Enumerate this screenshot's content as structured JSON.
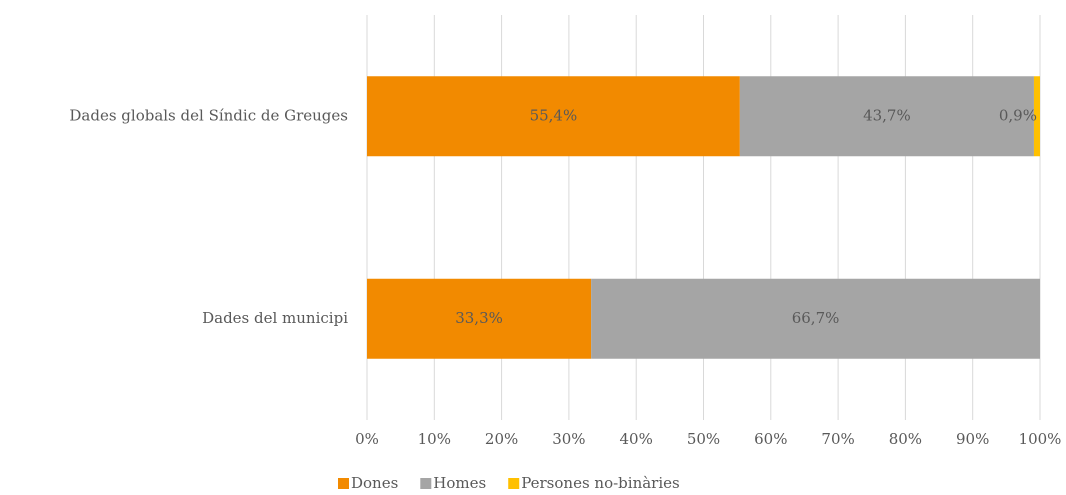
{
  "chart_data": {
    "type": "stacked-bar-horizontal",
    "categories": [
      "Dades globals del Síndic de Greuges",
      "Dades del municipi"
    ],
    "series": [
      {
        "name": "Dones",
        "color": "#f28a00",
        "values": [
          55.4,
          33.3
        ],
        "value_labels": [
          "55,4%",
          "33,3%"
        ]
      },
      {
        "name": "Homes",
        "color": "#a5a5a5",
        "values": [
          43.7,
          66.7
        ],
        "value_labels": [
          "43,7%",
          "66,7%"
        ]
      },
      {
        "name": "Persones no-binàries",
        "color": "#ffc000",
        "values": [
          0.9,
          null
        ],
        "value_labels": [
          "0,9%",
          null
        ]
      }
    ],
    "xlim": [
      0,
      100
    ],
    "xticks": [
      {
        "value": 0,
        "label": "0%"
      },
      {
        "value": 10,
        "label": "10%"
      },
      {
        "value": 20,
        "label": "20%"
      },
      {
        "value": 30,
        "label": "30%"
      },
      {
        "value": 40,
        "label": "40%"
      },
      {
        "value": 50,
        "label": "50%"
      },
      {
        "value": 60,
        "label": "60%"
      },
      {
        "value": 70,
        "label": "70%"
      },
      {
        "value": 80,
        "label": "80%"
      },
      {
        "value": 90,
        "label": "90%"
      },
      {
        "value": 100,
        "label": "100%"
      }
    ],
    "grid": true,
    "legend": "bottom"
  }
}
